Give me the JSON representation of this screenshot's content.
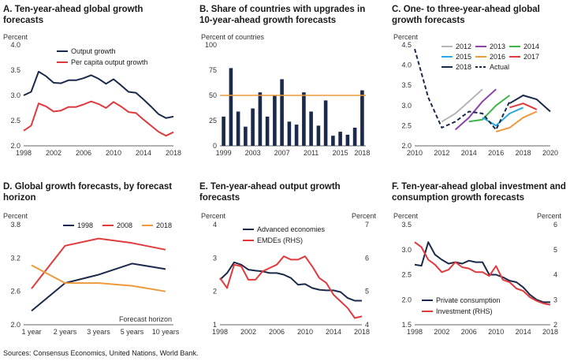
{
  "source": "Sources: Consensus Economics, United Nations, World Bank.",
  "colors": {
    "navy": "#1b2a4a",
    "red": "#e03a3e",
    "orange": "#ee9a3b",
    "green": "#3cb54a",
    "purple": "#8e44ad",
    "gray": "#b5b5b5",
    "blue": "#29a9e0"
  },
  "chart_data": [
    {
      "id": "A",
      "type": "line",
      "title": [
        "A. Ten-year-ahead global growth",
        "forecasts"
      ],
      "ylabel": "Percent",
      "ylim": [
        2.0,
        4.0
      ],
      "yticks": [
        2.0,
        2.5,
        3.0,
        3.5,
        4.0
      ],
      "ytick_labels": [
        "2.0",
        "2.5",
        "3.0",
        "3.5",
        "4.0"
      ],
      "xlim": [
        1998,
        2018
      ],
      "xticks": [
        1998,
        2002,
        2006,
        2010,
        2014,
        2018
      ],
      "legend": "top",
      "series": [
        {
          "name": "Output growth",
          "color": "#1b2a4a",
          "x": [
            1998,
            1999,
            2000,
            2001,
            2002,
            2003,
            2004,
            2005,
            2006,
            2007,
            2008,
            2009,
            2010,
            2011,
            2012,
            2013,
            2014,
            2015,
            2016,
            2017,
            2018
          ],
          "values": [
            3.0,
            3.07,
            3.47,
            3.38,
            3.25,
            3.24,
            3.3,
            3.3,
            3.34,
            3.4,
            3.33,
            3.23,
            3.32,
            3.2,
            3.07,
            3.05,
            2.92,
            2.78,
            2.63,
            2.55,
            2.58
          ]
        },
        {
          "name": "Per capita output growth",
          "color": "#e03a3e",
          "x": [
            1998,
            1999,
            2000,
            2001,
            2002,
            2003,
            2004,
            2005,
            2006,
            2007,
            2008,
            2009,
            2010,
            2011,
            2012,
            2013,
            2014,
            2015,
            2016,
            2017,
            2018
          ],
          "values": [
            2.3,
            2.4,
            2.84,
            2.78,
            2.68,
            2.7,
            2.77,
            2.77,
            2.82,
            2.88,
            2.83,
            2.75,
            2.87,
            2.78,
            2.67,
            2.65,
            2.52,
            2.4,
            2.28,
            2.2,
            2.27
          ]
        }
      ]
    },
    {
      "id": "B",
      "type": "bar",
      "title": [
        "B. Share of countries with upgrades in",
        "10-year-ahead growth forecasts"
      ],
      "ylabel": "Percent of countries",
      "ylim": [
        0,
        100
      ],
      "yticks": [
        0,
        25,
        50,
        75,
        100
      ],
      "categories": [
        1999,
        2000,
        2001,
        2002,
        2003,
        2004,
        2005,
        2006,
        2007,
        2008,
        2009,
        2010,
        2011,
        2012,
        2013,
        2014,
        2015,
        2016,
        2017,
        2018
      ],
      "xtick_labels": [
        "1999",
        "2003",
        "2007",
        "2011",
        "2015",
        "2018"
      ],
      "values": [
        29,
        77,
        34,
        19,
        37,
        53,
        29,
        50,
        66,
        24,
        21,
        53,
        34,
        20,
        45,
        10,
        14,
        11,
        18,
        55
      ],
      "reference_line": 50,
      "bar_color": "#1b2a4a",
      "line_color": "#ee9a3b"
    },
    {
      "id": "C",
      "type": "line",
      "title": [
        "C. One- to three-year-ahead global",
        "growth forecasts"
      ],
      "ylabel": "Percent",
      "ylim": [
        2.0,
        4.5
      ],
      "yticks": [
        2.0,
        2.5,
        3.0,
        3.5,
        4.0,
        4.5
      ],
      "ytick_labels": [
        "2.0",
        "2.5",
        "3.0",
        "3.5",
        "4.0",
        "4.5"
      ],
      "xlim": [
        2010,
        2020
      ],
      "xticks": [
        2010,
        2012,
        2014,
        2016,
        2018,
        2020
      ],
      "legend": "top",
      "series": [
        {
          "name": "2012",
          "color": "#b5b5b5",
          "x": [
            2012,
            2013,
            2014,
            2015
          ],
          "values": [
            2.6,
            2.8,
            3.1,
            3.4
          ]
        },
        {
          "name": "2013",
          "color": "#8e44ad",
          "x": [
            2013,
            2014,
            2015,
            2016
          ],
          "values": [
            2.4,
            2.7,
            3.1,
            3.4
          ]
        },
        {
          "name": "2014",
          "color": "#3cb54a",
          "x": [
            2014,
            2015,
            2016,
            2017
          ],
          "values": [
            2.6,
            2.65,
            3.0,
            3.25
          ]
        },
        {
          "name": "2015",
          "color": "#29a9e0",
          "x": [
            2015,
            2016,
            2017,
            2018
          ],
          "values": [
            2.7,
            2.5,
            2.8,
            2.95
          ]
        },
        {
          "name": "2016",
          "color": "#ee9a3b",
          "x": [
            2016,
            2017,
            2018,
            2019
          ],
          "values": [
            2.35,
            2.45,
            2.7,
            2.85
          ]
        },
        {
          "name": "2017",
          "color": "#e03a3e",
          "x": [
            2017,
            2018,
            2019
          ],
          "values": [
            2.95,
            3.05,
            2.9
          ]
        },
        {
          "name": "2018",
          "color": "#1b2a4a",
          "x": [
            2017,
            2018,
            2019,
            2020
          ],
          "values": [
            3.05,
            3.25,
            3.15,
            2.85
          ]
        },
        {
          "name": "Actual",
          "color": "#1b2a4a",
          "dashed": true,
          "x": [
            2010,
            2011,
            2012,
            2013,
            2014,
            2015,
            2016,
            2017
          ],
          "values": [
            4.4,
            3.2,
            2.45,
            2.6,
            2.85,
            2.8,
            2.4,
            3.1
          ]
        }
      ]
    },
    {
      "id": "D",
      "type": "line",
      "title": [
        "D. Global growth forecasts, by forecast",
        "horizon"
      ],
      "ylabel": "Percent",
      "ylim": [
        2.0,
        3.8
      ],
      "yticks": [
        2.0,
        2.6,
        3.2,
        3.8
      ],
      "ytick_labels": [
        "2.0",
        "2.6",
        "3.2",
        "3.8"
      ],
      "categories": [
        "1 year",
        "2 years",
        "3 years",
        "5 years",
        "10 years"
      ],
      "xlabel": "Forecast horizon",
      "legend": "top",
      "series": [
        {
          "name": "1998",
          "color": "#1b2a4a",
          "values": [
            2.25,
            2.75,
            2.9,
            3.1,
            3.0
          ]
        },
        {
          "name": "2008",
          "color": "#e03a3e",
          "values": [
            2.65,
            3.42,
            3.55,
            3.47,
            3.35
          ]
        },
        {
          "name": "2018",
          "color": "#ee9a3b",
          "values": [
            3.07,
            2.75,
            2.75,
            2.7,
            2.6
          ]
        }
      ]
    },
    {
      "id": "E",
      "type": "line",
      "title": [
        "E. Ten-year-ahead output growth",
        "forecasts"
      ],
      "ylabel": "Percent",
      "ylabel_right": "Percent",
      "ylim": [
        1,
        4
      ],
      "ylim_right": [
        4,
        7
      ],
      "yticks": [
        1,
        2,
        3,
        4
      ],
      "yticks_right": [
        4,
        5,
        6,
        7
      ],
      "xlim": [
        1998,
        2018
      ],
      "xticks": [
        1998,
        2002,
        2006,
        2010,
        2014,
        2018
      ],
      "legend": "top",
      "series": [
        {
          "name": "Advanced economies",
          "color": "#1b2a4a",
          "axis": "left",
          "x": [
            1998,
            1999,
            2000,
            2001,
            2002,
            2003,
            2004,
            2005,
            2006,
            2007,
            2008,
            2009,
            2010,
            2011,
            2012,
            2013,
            2014,
            2015,
            2016,
            2017,
            2018
          ],
          "values": [
            2.35,
            2.55,
            2.87,
            2.8,
            2.65,
            2.62,
            2.6,
            2.55,
            2.55,
            2.5,
            2.4,
            2.2,
            2.22,
            2.1,
            2.05,
            2.03,
            2.03,
            1.98,
            1.8,
            1.72,
            1.72
          ]
        },
        {
          "name": "EMDEs (RHS)",
          "color": "#e03a3e",
          "axis": "right",
          "x": [
            1998,
            1999,
            2000,
            2001,
            2002,
            2003,
            2004,
            2005,
            2006,
            2007,
            2008,
            2009,
            2010,
            2011,
            2012,
            2013,
            2014,
            2015,
            2016,
            2017,
            2018
          ],
          "values": [
            5.4,
            5.1,
            5.8,
            5.75,
            5.35,
            5.35,
            5.6,
            5.7,
            5.8,
            6.05,
            5.95,
            5.95,
            6.05,
            5.75,
            5.4,
            5.25,
            4.9,
            4.7,
            4.5,
            4.2,
            4.25
          ]
        }
      ]
    },
    {
      "id": "F",
      "type": "line",
      "title": [
        "F. Ten-year-ahead global investment and",
        "consumption growth forecasts"
      ],
      "ylabel": "Percent",
      "ylabel_right": "Percent",
      "ylim": [
        1.5,
        3.5
      ],
      "ylim_right": [
        2,
        6
      ],
      "yticks": [
        1.5,
        2.0,
        2.5,
        3.0,
        3.5
      ],
      "ytick_labels": [
        "1.5",
        "2.0",
        "2.5",
        "3.0",
        "3.5"
      ],
      "yticks_right": [
        2,
        3,
        4,
        5,
        6
      ],
      "xlim": [
        1998,
        2018
      ],
      "xticks": [
        1998,
        2002,
        2006,
        2010,
        2014,
        2018
      ],
      "legend": "bottom-left",
      "series": [
        {
          "name": "Private consumption",
          "color": "#1b2a4a",
          "axis": "left",
          "x": [
            1998,
            1999,
            2000,
            2001,
            2002,
            2003,
            2004,
            2005,
            2006,
            2007,
            2008,
            2009,
            2010,
            2011,
            2012,
            2013,
            2014,
            2015,
            2016,
            2017,
            2018
          ],
          "values": [
            2.7,
            2.68,
            3.15,
            2.9,
            2.8,
            2.72,
            2.75,
            2.72,
            2.78,
            2.75,
            2.75,
            2.5,
            2.5,
            2.45,
            2.38,
            2.35,
            2.25,
            2.1,
            2.0,
            1.95,
            1.95
          ]
        },
        {
          "name": "Investment (RHS)",
          "color": "#e03a3e",
          "axis": "right",
          "x": [
            1998,
            1999,
            2000,
            2001,
            2002,
            2003,
            2004,
            2005,
            2006,
            2007,
            2008,
            2009,
            2010,
            2011,
            2012,
            2013,
            2014,
            2015,
            2016,
            2017,
            2018
          ],
          "values": [
            5.3,
            5.1,
            4.6,
            4.4,
            4.1,
            4.2,
            4.5,
            4.3,
            4.25,
            4.1,
            4.1,
            3.95,
            4.35,
            3.8,
            3.7,
            3.45,
            3.35,
            3.1,
            2.95,
            2.85,
            2.8
          ]
        }
      ]
    }
  ]
}
